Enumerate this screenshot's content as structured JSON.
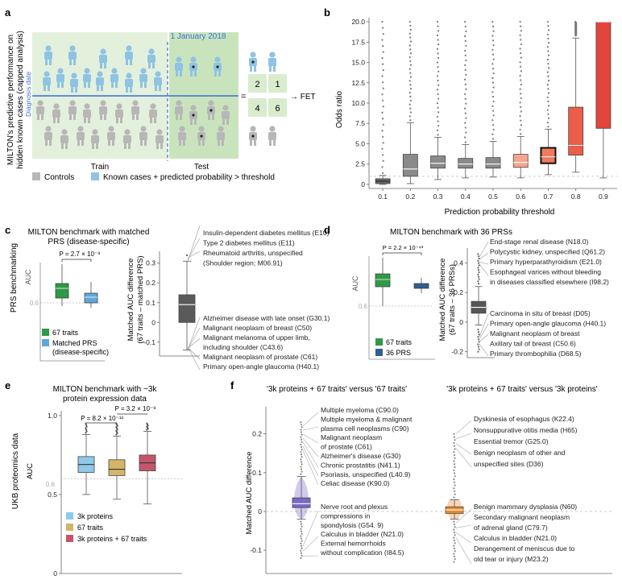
{
  "panels": {
    "a": {
      "letter": "a",
      "y_title_line1": "MILTON's predictive performance on",
      "y_title_line2": "hidden known cases (capped analysis)",
      "date_label": "1 January 2018",
      "diagnosis_label": "Diagnosis date",
      "train_label": "Train",
      "test_label": "Test",
      "equals": "=",
      "contingency": [
        "2",
        "1",
        "4",
        "6"
      ],
      "fet_label": "→ FET",
      "legend": [
        {
          "label": "Controls",
          "color": "#b7b7b7"
        },
        {
          "label": "Known cases + predicted probability > threshold",
          "color": "#8fc3e3"
        }
      ],
      "colors": {
        "train_bg": "#e3f0dc",
        "test_bg": "#c9e4bd",
        "case": "#8fc3e3",
        "control": "#b7b7b7",
        "line": "#3b6fd4"
      }
    },
    "b": {
      "letter": "b",
      "chart_data": {
        "type": "box",
        "title": "",
        "xlabel": "Prediction probability threshold",
        "ylabel": "Odds ratio",
        "ylim": [
          -0.5,
          20.5
        ],
        "yticks": [
          "0",
          "2.5",
          "5.0",
          "7.5",
          "10.0",
          "12.5",
          "15.0",
          "17.5",
          "20.0"
        ],
        "ytick_values": [
          0,
          2.5,
          5.0,
          7.5,
          10.0,
          12.5,
          15.0,
          17.5,
          20.0
        ],
        "reference_line": 1,
        "categories": [
          "0.1",
          "0.2",
          "0.3",
          "0.4",
          "0.5",
          "0.6",
          "0.7",
          "0.8",
          "0.9"
        ],
        "boxes": [
          {
            "q1": 0.1,
            "median": 0.4,
            "q3": 0.7,
            "wlo": 0,
            "whi": 1.1,
            "color": "#6b6b6b"
          },
          {
            "q1": 1.0,
            "median": 1.9,
            "q3": 3.7,
            "wlo": 0.1,
            "whi": 7.6,
            "color": "#8a8a8a"
          },
          {
            "q1": 2.0,
            "median": 2.6,
            "q3": 3.5,
            "wlo": 0.6,
            "whi": 5.8,
            "color": "#8a8a8a"
          },
          {
            "q1": 2.0,
            "median": 2.5,
            "q3": 3.2,
            "wlo": 0.8,
            "whi": 4.9,
            "color": "#8a8a8a"
          },
          {
            "q1": 2.0,
            "median": 2.5,
            "q3": 3.3,
            "wlo": 0.9,
            "whi": 5.3,
            "color": "#8a8a8a"
          },
          {
            "q1": 2.1,
            "median": 2.7,
            "q3": 3.7,
            "wlo": 0.8,
            "whi": 5.9,
            "color": "#f5a58d"
          },
          {
            "q1": 2.6,
            "median": 3.4,
            "q3": 4.5,
            "wlo": 1.2,
            "whi": 6.8,
            "color": "#f07a5e"
          },
          {
            "q1": 3.6,
            "median": 4.8,
            "q3": 9.5,
            "wlo": 1.5,
            "whi": 18.0,
            "color": "#eb5e4a"
          },
          {
            "q1": 6.9,
            "median": 20.0,
            "q3": 20.0,
            "wlo": 0.8,
            "whi": 20.0,
            "color": "#e3453a"
          }
        ]
      }
    },
    "c": {
      "letter": "c",
      "title_line1": "MILTON benchmark with matched",
      "title_line2": "PRS (disease-specific)",
      "side_label": "PRS benchmarking",
      "ylabel": "AUC",
      "pvalue": "P = 2.7 × 10⁻⁹",
      "ref_tick": "0.6",
      "legend": [
        {
          "label": "67 traits",
          "color": "#2e9a47"
        },
        {
          "label": "Matched PRS",
          "color": "#5fa7d8"
        },
        {
          "label": "(disease-specific)",
          "color": ""
        }
      ],
      "chart_data": {
        "type": "box",
        "ylabel": "Matched AUC difference (67 traits – matched PRS)",
        "ylim": [
          -0.17,
          0.36
        ],
        "yticks": [
          "-0.1",
          "0",
          "0.1",
          "0.2",
          "0.3"
        ],
        "ytick_values": [
          -0.1,
          0,
          0.1,
          0.2,
          0.3
        ],
        "box": {
          "q1": 0.0,
          "median": 0.09,
          "q3": 0.14,
          "wlo": -0.14,
          "whi": 0.31
        },
        "annotations_top": [
          "Insulin-dependent diabetes mellitus (E10)",
          "Type 2 diabetes mellitus (E11)",
          "Rheumatoid arthritis, unspecified",
          "(Shoulder region; M06.91)"
        ],
        "annotations_bottom": [
          "Alzheimer disease with late onset (G30.1)",
          "Malignant neoplasm of breast (C50)",
          "Malignant melanoma of upper limb,",
          "including shoulder (C43.6)",
          "Malignant neoplasm of prostate (C61)",
          "Primary open-angle glaucoma (H40.1)"
        ]
      }
    },
    "d": {
      "letter": "d",
      "title": "MILTON benchmark with 36 PRSs",
      "ylabel": "AUC",
      "pvalue": "P = 2.2 × 10⁻⁴³",
      "ref_tick": "0.6",
      "legend": [
        {
          "label": "67 traits",
          "color": "#2e9a47"
        },
        {
          "label": "36 PRS",
          "color": "#2f5f8f"
        }
      ],
      "chart_data": {
        "type": "box",
        "ylabel": "Matched AUC difference (67 traits – 36 PRSs)",
        "ylim": [
          -0.24,
          0.5
        ],
        "yticks": [
          "-0.2",
          "0",
          "0.2",
          "0.4"
        ],
        "ytick_values": [
          -0.2,
          0,
          0.2,
          0.4
        ],
        "box": {
          "q1": 0.06,
          "median": 0.1,
          "q3": 0.14,
          "wlo": -0.02,
          "whi": 0.24
        },
        "annotations_top": [
          "End-stage renal disease (N18.0)",
          "Polycystic kidney, unspecified (Q61.2)",
          "Primary hyperparathyroidism (E21.0)",
          "Esophageal varices without bleeding",
          "in diseases classified elsewhere (I98.2)"
        ],
        "annotations_bottom": [
          "Carcinoma in situ of breast (D05)",
          "Primary open-angle glaucoma (H40.1)",
          "Malignant neoplasm of breast",
          "Axillary tail of breast (C50.6)",
          "Primary thrombophilia (D68.5)"
        ]
      }
    },
    "e": {
      "letter": "e",
      "title_line1": "MILTON benchmark with ~3k",
      "title_line2": "protein expression data",
      "side_label": "UKB proteomics data",
      "ylabel": "AUC",
      "pvalue1": "P = 8.2 × 10⁻¹⁶",
      "pvalue2": "P = 3.2 × 10⁻⁹",
      "ref_tick": "0.6",
      "legend": [
        {
          "label": "3k proteins",
          "color": "#8ec9ea"
        },
        {
          "label": "67 traits",
          "color": "#d4b567"
        },
        {
          "label": "3k proteins + 67 traits",
          "color": "#c4566b"
        }
      ],
      "chart_data": {
        "type": "box",
        "ylabel": "AUC",
        "ylim": [
          0,
          1.03
        ],
        "yticks": [
          "0",
          "0.5",
          "1.0"
        ],
        "ytick_values": [
          0,
          0.5,
          1.0
        ],
        "categories": [
          "3k proteins",
          "67 traits",
          "3k proteins + 67 traits"
        ],
        "boxes": [
          {
            "q1": 0.64,
            "median": 0.69,
            "q3": 0.74,
            "wlo": 0.5,
            "whi": 0.88,
            "color": "#8ec9ea"
          },
          {
            "q1": 0.62,
            "median": 0.66,
            "q3": 0.72,
            "wlo": 0.47,
            "whi": 0.87,
            "color": "#d4b567"
          },
          {
            "q1": 0.65,
            "median": 0.7,
            "q3": 0.75,
            "wlo": 0.44,
            "whi": 0.9,
            "color": "#c4566b"
          }
        ]
      }
    },
    "f": {
      "letter": "f",
      "title_left": "'3k proteins + 67 traits' versus '67 traits'",
      "title_right": "'3k proteins + 67 traits' versus '3k proteins'",
      "chart_data": {
        "type": "violin",
        "ylabel": "Matched AUC difference",
        "ylim": [
          -0.16,
          0.27
        ],
        "yticks": [
          "-0.1",
          "0",
          "0.1",
          "0.2"
        ],
        "ytick_values": [
          -0.1,
          0,
          0.1,
          0.2
        ],
        "series": [
          {
            "name": "3k proteins + 67 traits versus 67 traits",
            "color": "#7b68c6",
            "q1": 0.01,
            "median": 0.02,
            "q3": 0.035,
            "wlo": -0.02,
            "whi": 0.09
          },
          {
            "name": "3k proteins + 67 traits versus 3k proteins",
            "color": "#e58a2e",
            "q1": -0.005,
            "median": 0.004,
            "q3": 0.012,
            "wlo": -0.02,
            "whi": 0.03
          }
        ],
        "annotations_left_top": [
          "Multiple myeloma (C90.0)",
          "Multiple myeloma & malignant",
          "plasma cell neoplasms (C90)",
          "Malignant neoplasm",
          "of prostate (C61)",
          "Alzheimer's disease (G30)",
          "Chronic prostatitis (N41.1)",
          "Psoriasis, unspecified (L40.9)",
          "Celiac disease (K90.0)"
        ],
        "annotations_left_bottom": [
          "Nerve root and plexus",
          "compressions in",
          "spondylosis (G54. 9)",
          "Calculus in bladder (N21.0)",
          "External hemorrhoids",
          "without complication (I84.5)"
        ],
        "annotations_right_top": [
          "Dyskinesia of esophagus (K22.4)",
          "Nonsuppurative otitis media (H65)",
          "Essential tremor (G25.0)",
          "Benign neoplasm of other and",
          "unspecified sites (D36)"
        ],
        "annotations_right_bottom": [
          "Benign mammary dysplasia (N60)",
          "Secondary malignant neoplasm",
          "of adrenal gland (C79.7)",
          "Calculus in bladder (N21.0)",
          "Derangement of meniscus due to",
          "old tear or injury (M23.2)"
        ]
      }
    }
  }
}
